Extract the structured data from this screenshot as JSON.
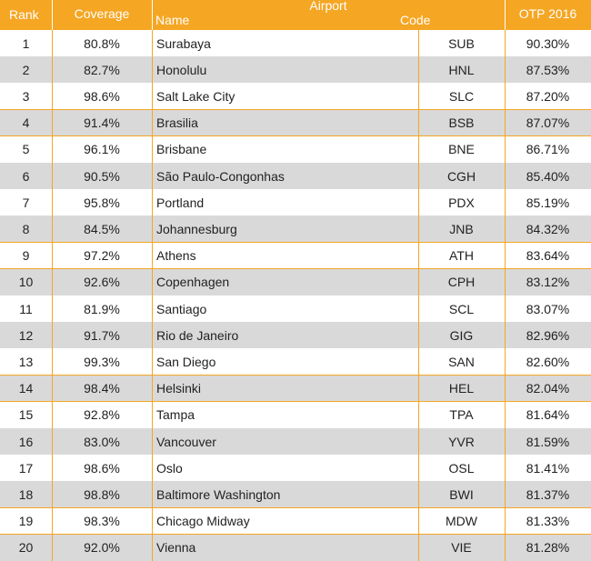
{
  "table": {
    "headers": {
      "rank": "Rank",
      "coverage": "Coverage",
      "airport": "Airport",
      "name": "Name",
      "code": "Code",
      "otp": "OTP 2016"
    },
    "rows": [
      [
        "1",
        "80.8%",
        "Surabaya",
        "SUB",
        "90.30%"
      ],
      [
        "2",
        "82.7%",
        "Honolulu",
        "HNL",
        "87.53%"
      ],
      [
        "3",
        "98.6%",
        "Salt Lake City",
        "SLC",
        "87.20%"
      ],
      [
        "4",
        "91.4%",
        "Brasilia",
        "BSB",
        "87.07%"
      ],
      [
        "5",
        "96.1%",
        "Brisbane",
        "BNE",
        "86.71%"
      ],
      [
        "6",
        "90.5%",
        "São Paulo-Congonhas",
        "CGH",
        "85.40%"
      ],
      [
        "7",
        "95.8%",
        "Portland",
        "PDX",
        "85.19%"
      ],
      [
        "8",
        "84.5%",
        "Johannesburg",
        "JNB",
        "84.32%"
      ],
      [
        "9",
        "97.2%",
        "Athens",
        "ATH",
        "83.64%"
      ],
      [
        "10",
        "92.6%",
        "Copenhagen",
        "CPH",
        "83.12%"
      ],
      [
        "11",
        "81.9%",
        "Santiago",
        "SCL",
        "83.07%"
      ],
      [
        "12",
        "91.7%",
        "Rio de Janeiro",
        "GIG",
        "82.96%"
      ],
      [
        "13",
        "99.3%",
        "San Diego",
        "SAN",
        "82.60%"
      ],
      [
        "14",
        "98.4%",
        "Helsinki",
        "HEL",
        "82.04%"
      ],
      [
        "15",
        "92.8%",
        "Tampa",
        "TPA",
        "81.64%"
      ],
      [
        "16",
        "83.0%",
        "Vancouver",
        "YVR",
        "81.59%"
      ],
      [
        "17",
        "98.6%",
        "Oslo",
        "OSL",
        "81.41%"
      ],
      [
        "18",
        "98.8%",
        "Baltimore Washington",
        "BWI",
        "81.37%"
      ],
      [
        "19",
        "98.3%",
        "Chicago Midway",
        "MDW",
        "81.33%"
      ],
      [
        "20",
        "92.0%",
        "Vienna",
        "VIE",
        "81.28%"
      ]
    ]
  }
}
